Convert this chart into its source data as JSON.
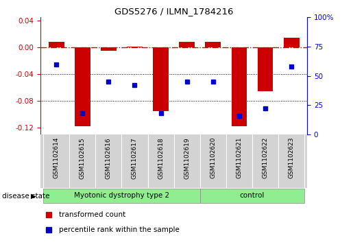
{
  "title": "GDS5276 / ILMN_1784216",
  "samples": [
    "GSM1102614",
    "GSM1102615",
    "GSM1102616",
    "GSM1102617",
    "GSM1102618",
    "GSM1102619",
    "GSM1102620",
    "GSM1102621",
    "GSM1102622",
    "GSM1102623"
  ],
  "red_values": [
    0.008,
    -0.118,
    -0.005,
    0.001,
    -0.095,
    0.008,
    0.009,
    -0.118,
    -0.065,
    0.015
  ],
  "blue_percentile": [
    60,
    18,
    45,
    42,
    18,
    45,
    45,
    16,
    22,
    58
  ],
  "ylim_left": [
    -0.13,
    0.045
  ],
  "ylim_right": [
    0,
    100
  ],
  "left_ticks": [
    0.04,
    0,
    -0.04,
    -0.08,
    -0.12
  ],
  "right_ticks": [
    100,
    75,
    50,
    25,
    0
  ],
  "red_color": "#CC0000",
  "blue_color": "#0000CC",
  "groups": [
    {
      "label": "Myotonic dystrophy type 2",
      "start": 0,
      "end": 5,
      "color": "#90EE90"
    },
    {
      "label": "control",
      "start": 6,
      "end": 9,
      "color": "#90EE90"
    }
  ],
  "disease_state_label": "disease state",
  "legend_red": "transformed count",
  "legend_blue": "percentile rank within the sample",
  "bar_width": 0.6,
  "grid_color": "#000000",
  "dashed_line_color": "#CC0000",
  "label_area_color": "#D3D3D3"
}
